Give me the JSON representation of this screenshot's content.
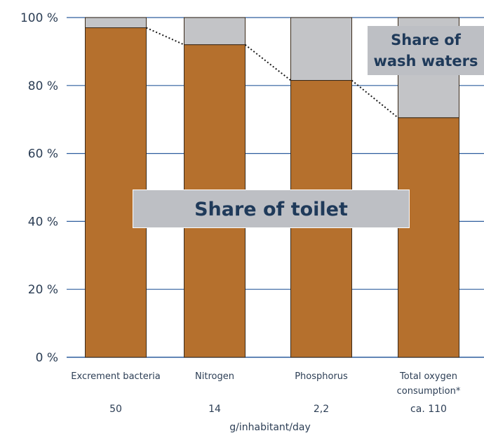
{
  "chart_data": {
    "type": "bar",
    "stacked": true,
    "categories": [
      "Excrement bacteria",
      "Nitrogen",
      "Phosphorus",
      "Total oxygen consumption*"
    ],
    "amounts": [
      "50",
      "14",
      "2,2",
      "ca. 110"
    ],
    "unit_label": "g/inhabitant/day",
    "series": [
      {
        "name": "Share of toilet",
        "values": [
          97,
          92,
          81.5,
          70.5
        ]
      },
      {
        "name": "Share of wash waters",
        "values": [
          3,
          8,
          18.5,
          29.5
        ]
      }
    ],
    "ylim": [
      0,
      100
    ],
    "yticks": [
      0,
      20,
      40,
      60,
      80,
      100
    ],
    "ytick_labels": [
      "0 %",
      "20 %",
      "40 %",
      "60 %",
      "80 %",
      "100 %"
    ],
    "grid": true,
    "colors": {
      "toilet": "#b5702d",
      "wash": "#c3c4c7",
      "grid": "#2e5e9e",
      "bar_edge": "#3a2a1a",
      "callout_bg": "#bdbfc4"
    }
  },
  "labels": {
    "toilet_callout": "Share of toilet",
    "wash_callout_line1": "Share of",
    "wash_callout_line2": "wash waters"
  }
}
